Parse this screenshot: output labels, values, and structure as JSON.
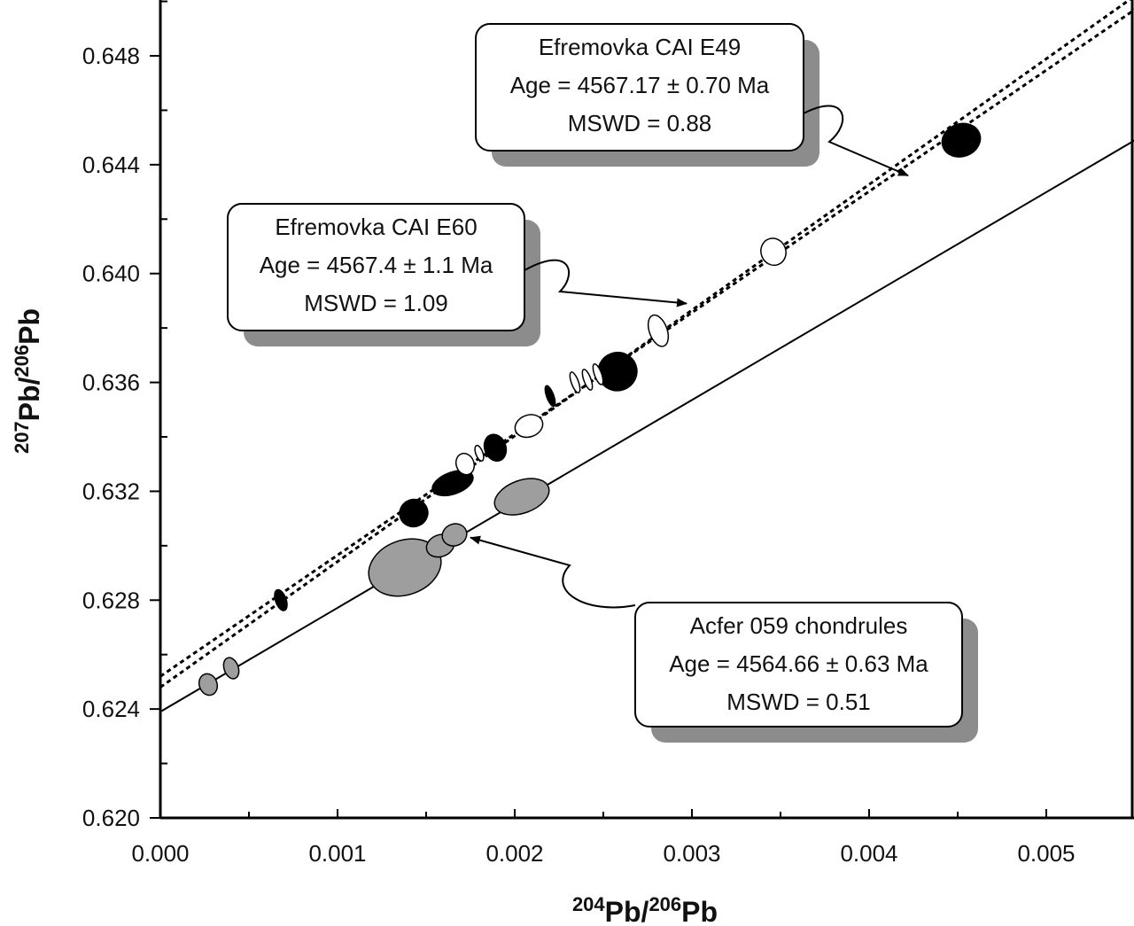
{
  "chart_data": {
    "type": "scatter",
    "title": "",
    "xlabel": {
      "sup1": "204",
      "base1": "Pb/",
      "sup2": "206",
      "base2": "Pb"
    },
    "ylabel": {
      "sup1": "207",
      "base1": "Pb/",
      "sup2": "206",
      "base2": "Pb"
    },
    "xlim": [
      0.0,
      0.0055
    ],
    "ylim": [
      0.62,
      0.65
    ],
    "xticks": [
      "0.000",
      "0.001",
      "0.002",
      "0.003",
      "0.004",
      "0.005"
    ],
    "yticks": [
      "0.620",
      "0.624",
      "0.628",
      "0.632",
      "0.636",
      "0.640",
      "0.644",
      "0.648"
    ],
    "lines": [
      {
        "name": "Efremovka CAI E49 isochron",
        "style": "dotted",
        "x": [
          0.0,
          0.0055
        ],
        "y": [
          0.6248,
          0.6502
        ]
      },
      {
        "name": "Efremovka CAI E60 isochron",
        "style": "dotted",
        "x": [
          0.0,
          0.0055
        ],
        "y": [
          0.6252,
          0.6497
        ]
      },
      {
        "name": "Acfer 059 chondrules isochron",
        "style": "solid",
        "x": [
          0.0,
          0.0055
        ],
        "y": [
          0.6239,
          0.6449
        ]
      }
    ],
    "series": [
      {
        "name": "E49 (filled)",
        "fill": "#000000",
        "points": [
          {
            "x": 0.00068,
            "y": 0.628,
            "rx": 3e-05,
            "ry": 0.0004
          },
          {
            "x": 0.00143,
            "y": 0.6312,
            "rx": 8e-05,
            "ry": 0.0005
          },
          {
            "x": 0.00165,
            "y": 0.6323,
            "rx": 0.00012,
            "ry": 0.0004
          },
          {
            "x": 0.00189,
            "y": 0.6336,
            "rx": 6e-05,
            "ry": 0.0005
          },
          {
            "x": 0.0022,
            "y": 0.6355,
            "rx": 2e-05,
            "ry": 0.0004
          },
          {
            "x": 0.00258,
            "y": 0.6364,
            "rx": 0.00011,
            "ry": 0.0007
          },
          {
            "x": 0.00452,
            "y": 0.6449,
            "rx": 0.00011,
            "ry": 0.0006
          }
        ]
      },
      {
        "name": "E60 (open)",
        "fill": "#ffffff",
        "points": [
          {
            "x": 0.00172,
            "y": 0.633,
            "rx": 5e-05,
            "ry": 0.0004
          },
          {
            "x": 0.0018,
            "y": 0.6334,
            "rx": 2e-05,
            "ry": 0.0003
          },
          {
            "x": 0.00208,
            "y": 0.6344,
            "rx": 8e-05,
            "ry": 0.0004
          },
          {
            "x": 0.00234,
            "y": 0.636,
            "rx": 2e-05,
            "ry": 0.0004
          },
          {
            "x": 0.00241,
            "y": 0.6361,
            "rx": 2e-05,
            "ry": 0.0004
          },
          {
            "x": 0.00247,
            "y": 0.6363,
            "rx": 2e-05,
            "ry": 0.0004
          },
          {
            "x": 0.00281,
            "y": 0.6379,
            "rx": 5e-05,
            "ry": 0.0006
          },
          {
            "x": 0.00346,
            "y": 0.6408,
            "rx": 7e-05,
            "ry": 0.0005
          }
        ]
      },
      {
        "name": "Acfer 059 chondrules (grey)",
        "fill": "#9e9e9e",
        "points": [
          {
            "x": 0.00027,
            "y": 0.6249,
            "rx": 5e-05,
            "ry": 0.0004
          },
          {
            "x": 0.0004,
            "y": 0.6255,
            "rx": 4e-05,
            "ry": 0.0004
          },
          {
            "x": 0.00138,
            "y": 0.6292,
            "rx": 0.00021,
            "ry": 0.001
          },
          {
            "x": 0.00158,
            "y": 0.63,
            "rx": 8e-05,
            "ry": 0.0004
          },
          {
            "x": 0.00166,
            "y": 0.6304,
            "rx": 7e-05,
            "ry": 0.0004
          },
          {
            "x": 0.00204,
            "y": 0.6318,
            "rx": 0.00016,
            "ry": 0.0006
          }
        ]
      }
    ],
    "annotations": [
      {
        "lines": [
          "Efremovka CAI E49",
          "Age = 4567.17 ± 0.70 Ma",
          "MSWD = 0.88"
        ],
        "target": [
          0.00422,
          0.6436
        ]
      },
      {
        "lines": [
          "Efremovka CAI E60",
          "Age = 4567.4 ± 1.1 Ma",
          "MSWD = 1.09"
        ],
        "target": [
          0.00297,
          0.6389
        ]
      },
      {
        "lines": [
          "Acfer 059 chondrules",
          "Age = 4564.66 ± 0.63 Ma",
          "MSWD = 0.51"
        ],
        "target": [
          0.00175,
          0.6303
        ]
      }
    ],
    "grid": false,
    "legend": "none"
  }
}
